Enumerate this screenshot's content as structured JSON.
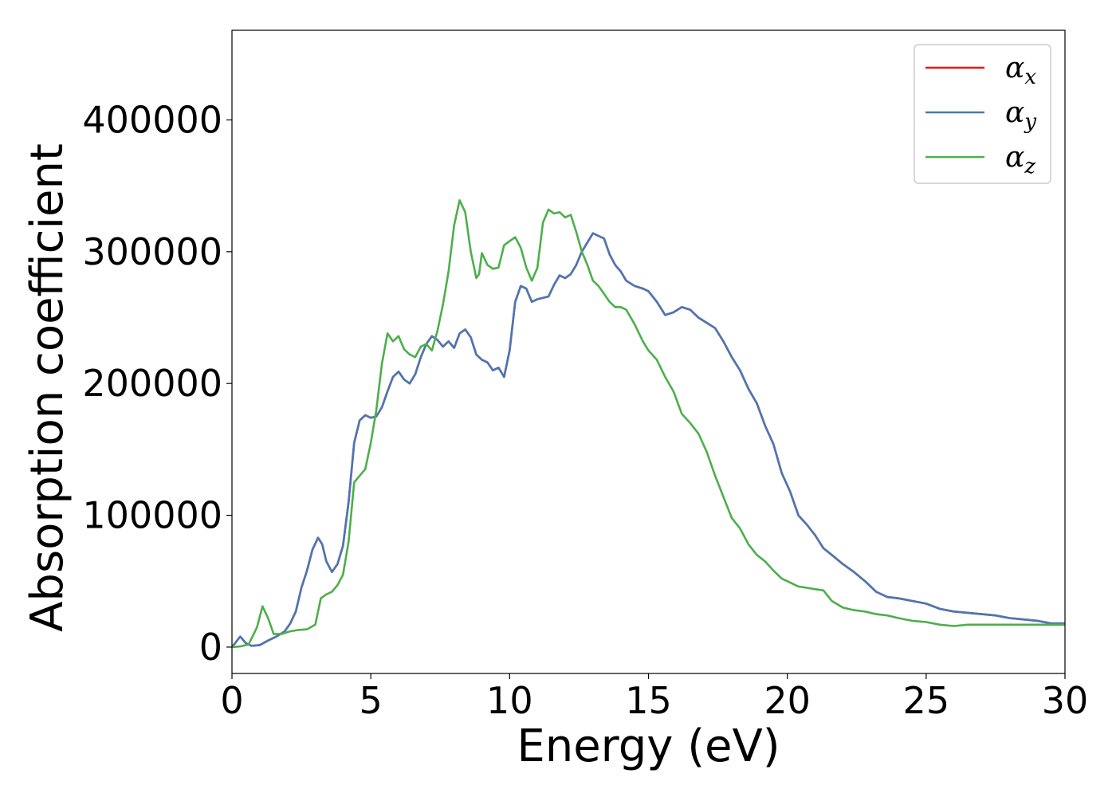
{
  "chart_data": {
    "type": "line",
    "title": "",
    "xlabel": "Energy (eV)",
    "ylabel": "Absorption coefficient",
    "xlim": [
      0,
      30
    ],
    "ylim": [
      -20000,
      468000
    ],
    "xticks": [
      0,
      5,
      10,
      15,
      20,
      25,
      30
    ],
    "yticks": [
      0,
      100000,
      200000,
      300000,
      400000
    ],
    "grid": false,
    "legend_position": "top-right",
    "series": [
      {
        "name": "α",
        "subscript": "x",
        "color": "#e41a1c",
        "x": [
          0,
          0.15,
          0.3,
          0.5,
          0.7,
          1.0,
          1.3,
          1.6,
          1.9,
          2.1,
          2.3,
          2.5,
          2.7,
          2.9,
          3.1,
          3.25,
          3.4,
          3.6,
          3.8,
          4.0,
          4.2,
          4.4,
          4.6,
          4.8,
          5.0,
          5.2,
          5.4,
          5.6,
          5.8,
          6.0,
          6.2,
          6.4,
          6.6,
          6.8,
          7.0,
          7.2,
          7.4,
          7.6,
          7.8,
          8.0,
          8.2,
          8.4,
          8.6,
          8.8,
          9.0,
          9.2,
          9.4,
          9.6,
          9.8,
          10.0,
          10.2,
          10.4,
          10.6,
          10.8,
          11.0,
          11.2,
          11.4,
          11.6,
          11.8,
          12.0,
          12.2,
          12.4,
          12.6,
          12.8,
          13.0,
          13.2,
          13.4,
          13.6,
          13.8,
          14.0,
          14.2,
          14.5,
          14.8,
          15.0,
          15.3,
          15.6,
          15.9,
          16.2,
          16.5,
          16.8,
          17.1,
          17.4,
          17.7,
          18.0,
          18.3,
          18.6,
          18.9,
          19.2,
          19.5,
          19.8,
          20.1,
          20.4,
          20.7,
          21.0,
          21.3,
          21.6,
          22.0,
          22.4,
          22.8,
          23.2,
          23.6,
          24.0,
          24.5,
          25.0,
          25.5,
          26.0,
          26.5,
          27.0,
          27.5,
          28.0,
          28.5,
          29.0,
          29.5,
          30.0
        ],
        "y": [
          0,
          4000,
          8000,
          3000,
          1000,
          1500,
          5000,
          8000,
          12000,
          18000,
          27000,
          45000,
          58000,
          74000,
          83000,
          78000,
          65000,
          57000,
          63000,
          77000,
          110000,
          155000,
          172000,
          176000,
          174000,
          175000,
          182000,
          194000,
          205000,
          209000,
          203000,
          200000,
          207000,
          220000,
          230000,
          236000,
          233000,
          228000,
          232000,
          227000,
          238000,
          241000,
          235000,
          222000,
          218000,
          216000,
          210000,
          212000,
          205000,
          225000,
          262000,
          274000,
          272000,
          262000,
          264000,
          265000,
          266000,
          275000,
          282000,
          280000,
          283000,
          290000,
          300000,
          307000,
          314000,
          312000,
          310000,
          298000,
          290000,
          285000,
          278000,
          274000,
          272000,
          270000,
          262000,
          252000,
          254000,
          258000,
          256000,
          250000,
          246000,
          242000,
          232000,
          220000,
          210000,
          196000,
          185000,
          168000,
          154000,
          132000,
          118000,
          100000,
          93000,
          85000,
          75000,
          70000,
          63000,
          57000,
          50000,
          42000,
          38000,
          37000,
          35000,
          33000,
          29000,
          27000,
          26000,
          25000,
          24000,
          22000,
          21000,
          20000,
          18000,
          18000
        ]
      },
      {
        "name": "α",
        "subscript": "y",
        "color": "#4a77b4",
        "x": [
          0,
          0.15,
          0.3,
          0.5,
          0.7,
          1.0,
          1.3,
          1.6,
          1.9,
          2.1,
          2.3,
          2.5,
          2.7,
          2.9,
          3.1,
          3.25,
          3.4,
          3.6,
          3.8,
          4.0,
          4.2,
          4.4,
          4.6,
          4.8,
          5.0,
          5.2,
          5.4,
          5.6,
          5.8,
          6.0,
          6.2,
          6.4,
          6.6,
          6.8,
          7.0,
          7.2,
          7.4,
          7.6,
          7.8,
          8.0,
          8.2,
          8.4,
          8.6,
          8.8,
          9.0,
          9.2,
          9.4,
          9.6,
          9.8,
          10.0,
          10.2,
          10.4,
          10.6,
          10.8,
          11.0,
          11.2,
          11.4,
          11.6,
          11.8,
          12.0,
          12.2,
          12.4,
          12.6,
          12.8,
          13.0,
          13.2,
          13.4,
          13.6,
          13.8,
          14.0,
          14.2,
          14.5,
          14.8,
          15.0,
          15.3,
          15.6,
          15.9,
          16.2,
          16.5,
          16.8,
          17.1,
          17.4,
          17.7,
          18.0,
          18.3,
          18.6,
          18.9,
          19.2,
          19.5,
          19.8,
          20.1,
          20.4,
          20.7,
          21.0,
          21.3,
          21.6,
          22.0,
          22.4,
          22.8,
          23.2,
          23.6,
          24.0,
          24.5,
          25.0,
          25.5,
          26.0,
          26.5,
          27.0,
          27.5,
          28.0,
          28.5,
          29.0,
          29.5,
          30.0
        ],
        "y": [
          0,
          4000,
          8000,
          3000,
          1000,
          1500,
          5000,
          8000,
          12000,
          18000,
          27000,
          45000,
          58000,
          74000,
          83000,
          78000,
          65000,
          57000,
          63000,
          77000,
          110000,
          155000,
          172000,
          176000,
          174000,
          175000,
          182000,
          194000,
          205000,
          209000,
          203000,
          200000,
          207000,
          220000,
          230000,
          236000,
          233000,
          228000,
          232000,
          227000,
          238000,
          241000,
          235000,
          222000,
          218000,
          216000,
          210000,
          212000,
          205000,
          225000,
          262000,
          274000,
          272000,
          262000,
          264000,
          265000,
          266000,
          275000,
          282000,
          280000,
          283000,
          290000,
          300000,
          307000,
          314000,
          312000,
          310000,
          298000,
          290000,
          285000,
          278000,
          274000,
          272000,
          270000,
          262000,
          252000,
          254000,
          258000,
          256000,
          250000,
          246000,
          242000,
          232000,
          220000,
          210000,
          196000,
          185000,
          168000,
          154000,
          132000,
          118000,
          100000,
          93000,
          85000,
          75000,
          70000,
          63000,
          57000,
          50000,
          42000,
          38000,
          37000,
          35000,
          33000,
          29000,
          27000,
          26000,
          25000,
          24000,
          22000,
          21000,
          20000,
          18000,
          18000
        ]
      },
      {
        "name": "α",
        "subscript": "z",
        "color": "#4daf4a",
        "x": [
          0,
          0.3,
          0.6,
          0.9,
          1.1,
          1.3,
          1.5,
          1.8,
          2.1,
          2.4,
          2.7,
          3.0,
          3.2,
          3.4,
          3.6,
          3.8,
          4.0,
          4.2,
          4.4,
          4.6,
          4.8,
          5.0,
          5.2,
          5.4,
          5.6,
          5.8,
          6.0,
          6.2,
          6.4,
          6.6,
          6.8,
          7.0,
          7.2,
          7.4,
          7.6,
          7.8,
          8.0,
          8.2,
          8.4,
          8.6,
          8.8,
          8.9,
          9.0,
          9.2,
          9.4,
          9.6,
          9.8,
          10.0,
          10.2,
          10.4,
          10.6,
          10.8,
          11.0,
          11.2,
          11.4,
          11.6,
          11.8,
          12.0,
          12.2,
          12.4,
          12.6,
          12.8,
          13.0,
          13.2,
          13.4,
          13.6,
          13.8,
          14.0,
          14.2,
          14.5,
          14.8,
          15.0,
          15.3,
          15.6,
          15.9,
          16.2,
          16.5,
          16.8,
          17.1,
          17.4,
          17.7,
          18.0,
          18.3,
          18.6,
          18.9,
          19.2,
          19.5,
          19.8,
          20.1,
          20.4,
          20.7,
          21.0,
          21.3,
          21.6,
          22.0,
          22.4,
          22.8,
          23.2,
          23.6,
          24.0,
          24.5,
          25.0,
          25.5,
          26.0,
          26.5,
          27.0,
          27.5,
          28.0,
          28.5,
          29.0,
          29.5,
          30.0
        ],
        "y": [
          0,
          500,
          2000,
          15000,
          31000,
          22000,
          10000,
          10000,
          12000,
          13000,
          13500,
          17000,
          37000,
          40000,
          42000,
          47000,
          55000,
          80000,
          125000,
          130000,
          135000,
          155000,
          180000,
          215000,
          238000,
          232000,
          236000,
          226000,
          222000,
          220000,
          228000,
          230000,
          225000,
          240000,
          260000,
          285000,
          320000,
          339000,
          330000,
          300000,
          280000,
          283000,
          299000,
          290000,
          287000,
          288000,
          305000,
          308000,
          311000,
          303000,
          288000,
          278000,
          288000,
          322000,
          332000,
          329000,
          330000,
          326000,
          328000,
          315000,
          300000,
          290000,
          278000,
          274000,
          268000,
          262000,
          258000,
          258000,
          256000,
          245000,
          232000,
          225000,
          218000,
          205000,
          194000,
          177000,
          170000,
          162000,
          148000,
          130000,
          114000,
          98000,
          90000,
          78000,
          70000,
          65000,
          58000,
          52000,
          49000,
          46000,
          45000,
          44000,
          43000,
          35000,
          30000,
          28000,
          27000,
          25000,
          24000,
          22000,
          20000,
          19000,
          17000,
          16000,
          17000,
          17000,
          17000,
          17000,
          17000,
          17000,
          17000,
          17000
        ]
      }
    ]
  }
}
